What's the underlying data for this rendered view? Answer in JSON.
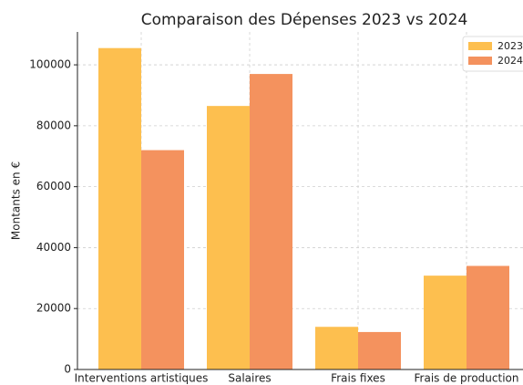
{
  "chart_data": {
    "type": "bar",
    "title": "Comparaison des Dépenses 2023 vs 2024",
    "y_label": "Montants en €",
    "categories": [
      "Interventions artistiques",
      "Salaires",
      "Frais fixes",
      "Frais de production"
    ],
    "series": [
      {
        "name": "2023",
        "color": "#fdbf4f",
        "values": [
          105500,
          86500,
          14000,
          30800
        ]
      },
      {
        "name": "2024",
        "color": "#f4925e",
        "values": [
          72000,
          97000,
          12300,
          34000
        ]
      }
    ],
    "ylim": [
      0,
      110800
    ],
    "yticks": [
      0,
      20000,
      40000,
      60000,
      80000,
      100000
    ],
    "grid": true,
    "legend": "upper right"
  }
}
